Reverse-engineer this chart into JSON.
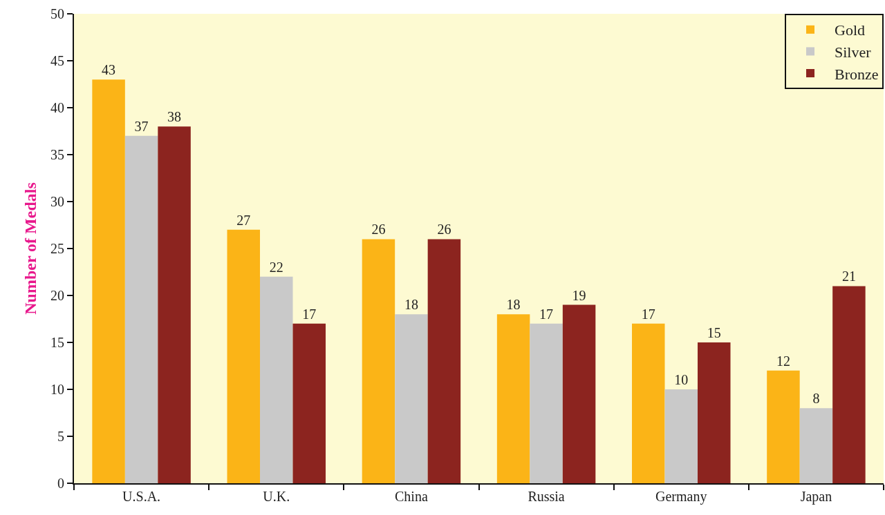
{
  "chart_data": {
    "type": "bar",
    "ylabel": "Number of Medals",
    "categories": [
      "U.S.A.",
      "U.K.",
      "China",
      "Russia",
      "Germany",
      "Japan"
    ],
    "series": [
      {
        "name": "Gold",
        "color": "#fbb417",
        "values": [
          43,
          27,
          26,
          18,
          17,
          12
        ]
      },
      {
        "name": "Silver",
        "color": "#c9c9c9",
        "values": [
          37,
          22,
          18,
          17,
          10,
          8
        ]
      },
      {
        "name": "Bronze",
        "color": "#8c241f",
        "values": [
          38,
          17,
          26,
          19,
          15,
          21
        ]
      }
    ],
    "ylim": [
      0,
      50
    ],
    "yticks": [
      0,
      5,
      10,
      15,
      20,
      25,
      30,
      35,
      40,
      45,
      50
    ],
    "grid": false,
    "legend": "top right",
    "data_labels": true
  }
}
